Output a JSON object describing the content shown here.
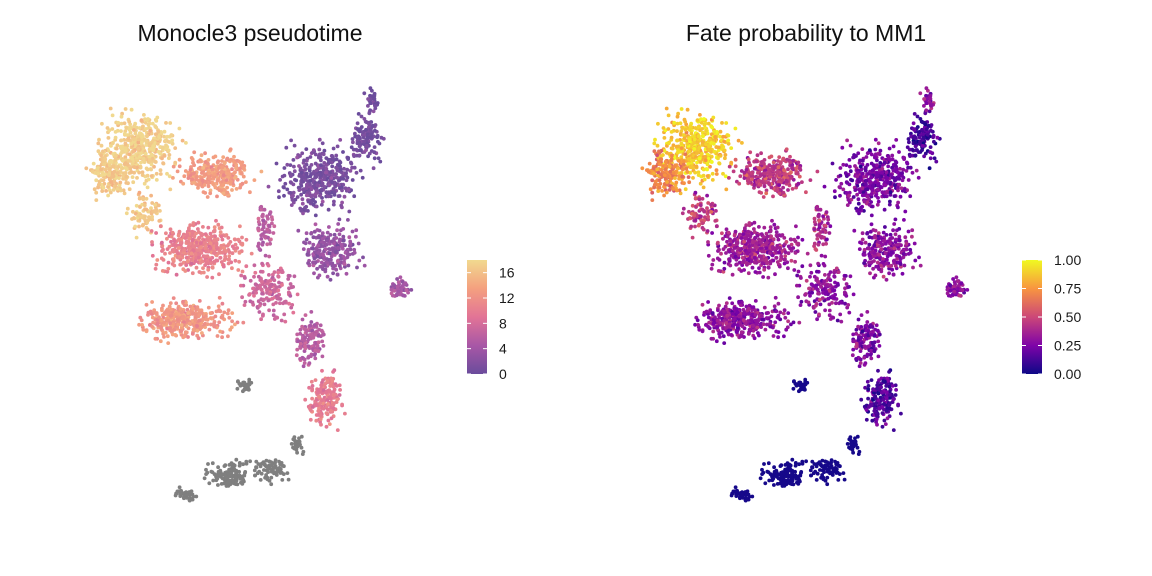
{
  "chart_data": [
    {
      "type": "scatter",
      "title": "Monocle3 pseudotime",
      "xlabel": "",
      "ylabel": "",
      "grid": false,
      "legend": {
        "placement": "right",
        "type": "colorbar",
        "range": [
          0,
          18
        ],
        "ticks": [
          0,
          4,
          8,
          12,
          16
        ],
        "tick_labels": [
          "0",
          "4",
          "8",
          "12",
          "16"
        ],
        "colors": [
          "#6A4C9C",
          "#A857A6",
          "#E27496",
          "#F4A07F",
          "#F1D98F"
        ]
      },
      "na_color": "#7F7F7F"
    },
    {
      "type": "scatter",
      "title": "Fate probability to MM1",
      "xlabel": "",
      "ylabel": "",
      "grid": false,
      "legend": {
        "placement": "right",
        "type": "colorbar",
        "range": [
          0,
          1
        ],
        "ticks": [
          0,
          0.25,
          0.5,
          0.75,
          1
        ],
        "tick_labels": [
          "0.00",
          "0.25",
          "0.50",
          "0.75",
          "1.00"
        ],
        "colors": [
          "#0D0887",
          "#7E03A8",
          "#CC4778",
          "#F89540",
          "#F0F921"
        ]
      }
    }
  ]
}
